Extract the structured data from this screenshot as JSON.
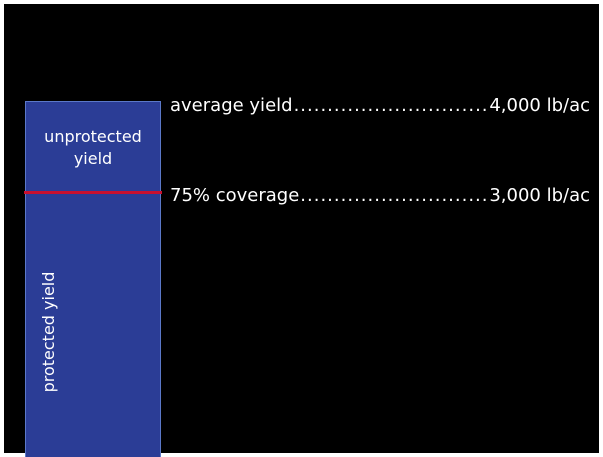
{
  "diagram": {
    "bar": {
      "unprotected_label_line1": "unprotected",
      "unprotected_label_line2": "yield",
      "protected_label": "protected yield",
      "fill_color": "#2b3d96",
      "coverage_line_color": "#c8102e"
    },
    "rows": [
      {
        "label": "average yield",
        "value": "4,000 lb/ac"
      },
      {
        "label": "75% coverage",
        "value": "3,000 lb/ac"
      }
    ]
  }
}
